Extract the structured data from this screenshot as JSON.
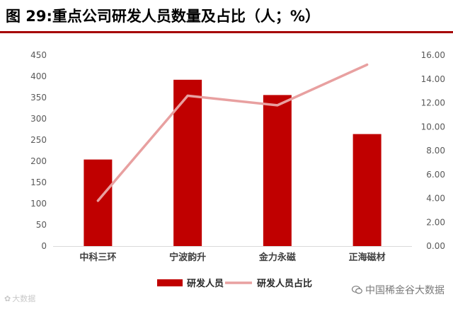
{
  "title": "图 29:重点公司研发人员数量及占比（人；%）",
  "watermark": "大数据",
  "brand": "中国稀金谷大数据",
  "colors": {
    "bar": "#c00000",
    "line": "#e8a0a0",
    "title_rule": "#a50000"
  },
  "chart_data": {
    "type": "bar",
    "categories": [
      "中科三环",
      "宁波韵升",
      "金力永磁",
      "正海磁材"
    ],
    "series": [
      {
        "name": "研发人员",
        "type": "bar",
        "axis": "left",
        "values": [
          204,
          392,
          356,
          264
        ]
      },
      {
        "name": "研发人员占比",
        "type": "line",
        "axis": "right",
        "values": [
          3.8,
          12.6,
          11.8,
          15.2
        ]
      }
    ],
    "ylim_left": [
      0,
      450
    ],
    "yticks_left": [
      "0",
      "50",
      "100",
      "150",
      "200",
      "250",
      "300",
      "350",
      "400",
      "450"
    ],
    "ylim_right": [
      0,
      16
    ],
    "yticks_right": [
      "0.00",
      "2.00",
      "4.00",
      "6.00",
      "8.00",
      "10.00",
      "12.00",
      "14.00",
      "16.00"
    ],
    "grid": false,
    "legend_position": "bottom"
  }
}
